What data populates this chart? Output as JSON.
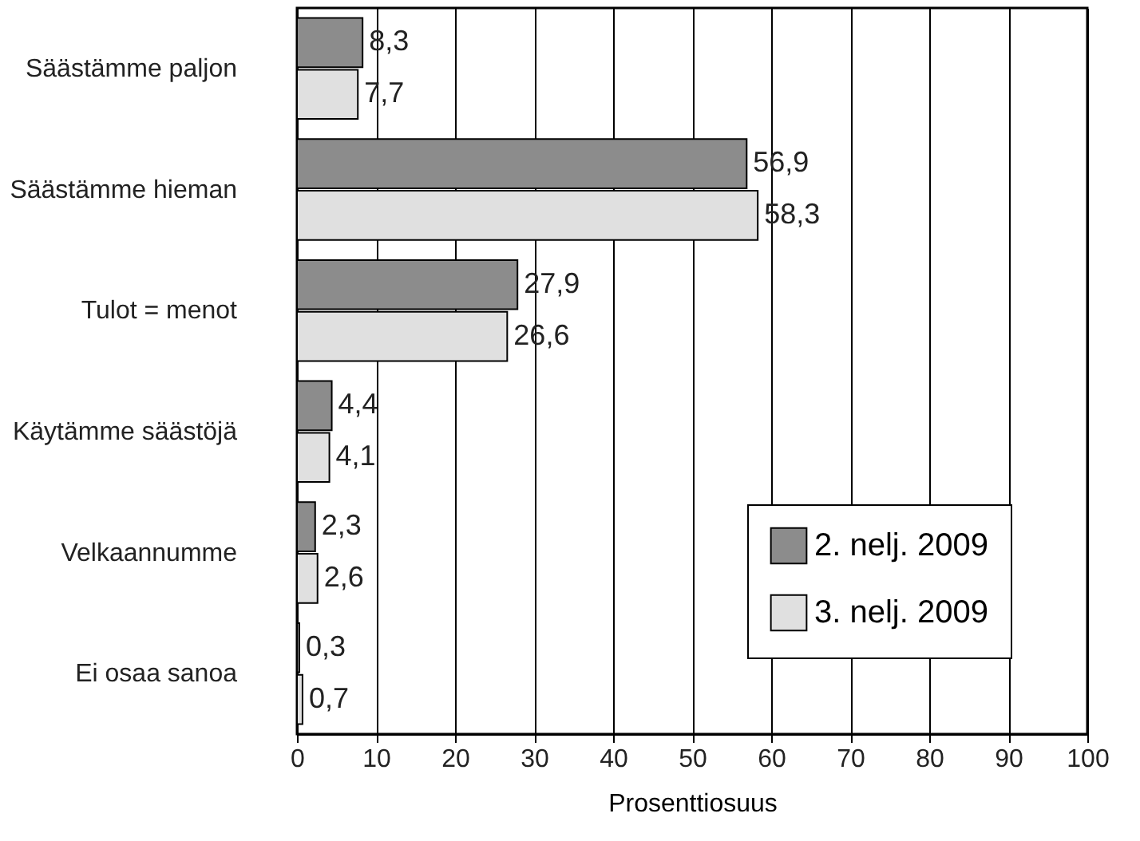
{
  "chart_data": {
    "type": "bar",
    "orientation": "horizontal",
    "xlabel": "Prosenttiosuus",
    "categories": [
      "Säästämme paljon",
      "Säästämme hieman",
      "Tulot = menot",
      "Käytämme säästöjä",
      "Velkaannumme",
      "Ei osaa sanoa"
    ],
    "series": [
      {
        "name": "2. nelj. 2009",
        "color": "#8c8c8c",
        "values": [
          8.3,
          56.9,
          27.9,
          4.4,
          2.3,
          0.3
        ],
        "value_labels": [
          "8,3",
          "56,9",
          "27,9",
          "4,4",
          "2,3",
          "0,3"
        ]
      },
      {
        "name": "3. nelj. 2009",
        "color": "#e0e0e0",
        "values": [
          7.7,
          58.3,
          26.6,
          4.1,
          2.6,
          0.7
        ],
        "value_labels": [
          "7,7",
          "58,3",
          "26,6",
          "4,1",
          "2,6",
          "0,7"
        ]
      }
    ],
    "xlim": [
      0,
      100
    ],
    "xticks": [
      0,
      10,
      20,
      30,
      40,
      50,
      60,
      70,
      80,
      90,
      100
    ],
    "grid": "x",
    "legend": "bottom right"
  }
}
